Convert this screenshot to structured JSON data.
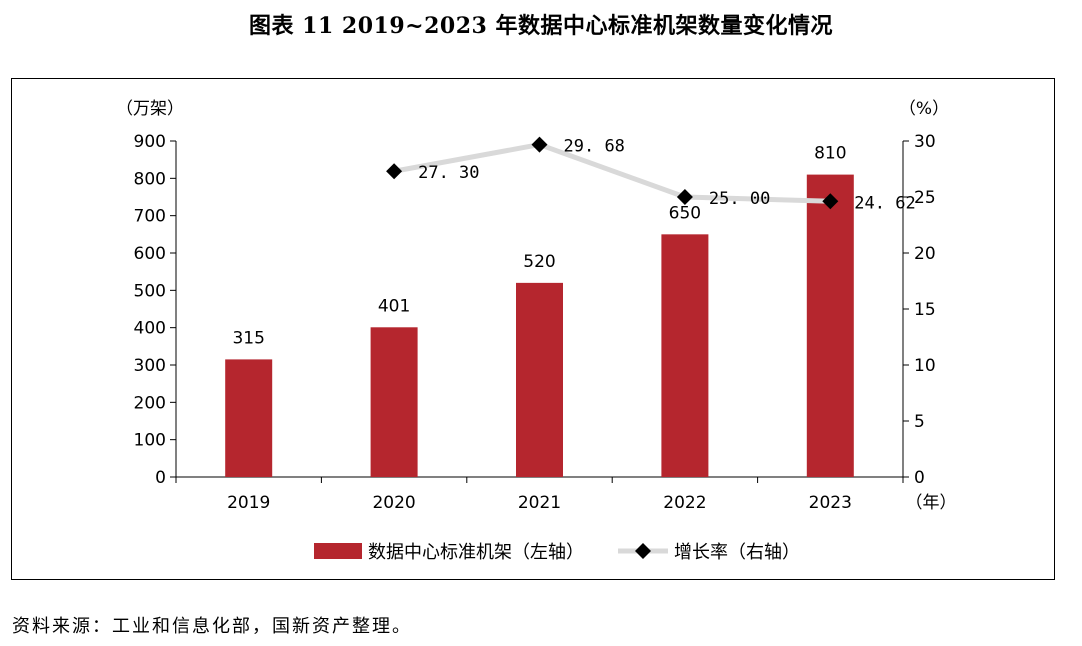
{
  "title": "图表 11  2019~2023 年数据中心标准机架数量变化情况",
  "source": "资料来源：工业和信息化部，国新资产整理。",
  "chart_data": {
    "type": "bar",
    "categories": [
      "2019",
      "2020",
      "2021",
      "2022",
      "2023"
    ],
    "y_unit": "（万架）",
    "y2_unit": "（%）",
    "x_unit": "（年）",
    "ylim": [
      0,
      900
    ],
    "yticks": [
      0,
      100,
      200,
      300,
      400,
      500,
      600,
      700,
      800,
      900
    ],
    "y2lim": [
      0,
      30
    ],
    "y2ticks": [
      0,
      5,
      10,
      15,
      20,
      25,
      30
    ],
    "grid": false,
    "legend_position": "bottom",
    "series": [
      {
        "name": "数据中心标准机架（左轴）",
        "type": "bar",
        "axis": "left",
        "color": "#b5262e",
        "values": [
          315,
          401,
          520,
          650,
          810
        ],
        "labels": [
          "315",
          "401",
          "520",
          "650",
          "810"
        ]
      },
      {
        "name": "增长率（右轴）",
        "type": "line",
        "axis": "right",
        "line_color": "#d9d9d9",
        "marker_color": "#000000",
        "marker": "diamond",
        "values": [
          null,
          27.3,
          29.68,
          25.0,
          24.62
        ],
        "labels": [
          "",
          "27. 30",
          "29. 68",
          "25. 00",
          "24. 62"
        ]
      }
    ]
  }
}
